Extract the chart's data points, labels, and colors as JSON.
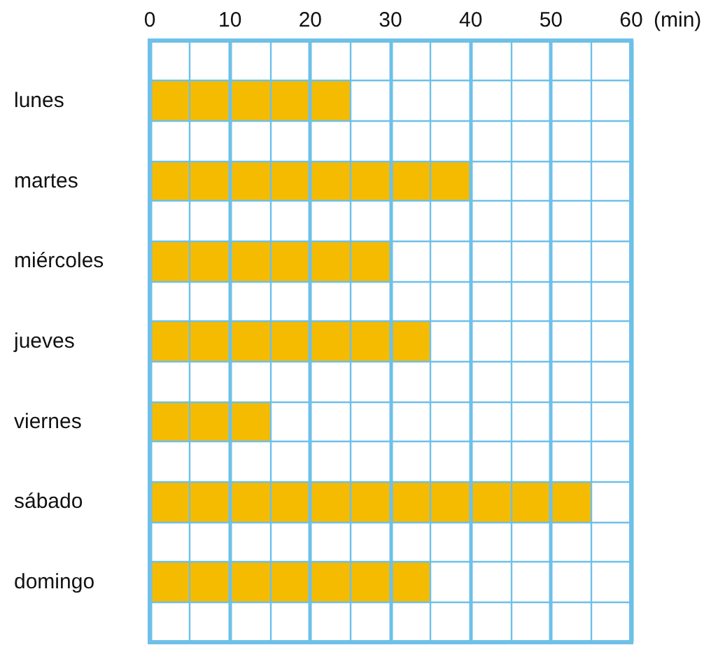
{
  "chart_data": {
    "type": "bar",
    "orientation": "horizontal",
    "xlabel": "(min)",
    "categories": [
      "lunes",
      "martes",
      "miércoles",
      "jueves",
      "viernes",
      "sábado",
      "domingo"
    ],
    "values": [
      25,
      40,
      30,
      35,
      15,
      55,
      35
    ],
    "color": "#f5bb00",
    "xlim": [
      0,
      60
    ],
    "xticks": [
      0,
      {
        "value": 5,
        "label": null
      },
      10,
      {
        "value": 15,
        "label": null
      },
      20,
      {
        "value": 25,
        "label": null
      },
      30,
      {
        "value": 35,
        "label": null
      },
      40,
      {
        "value": 45,
        "label": null
      },
      50,
      {
        "value": 55,
        "label": null
      },
      60
    ],
    "grid": true
  }
}
